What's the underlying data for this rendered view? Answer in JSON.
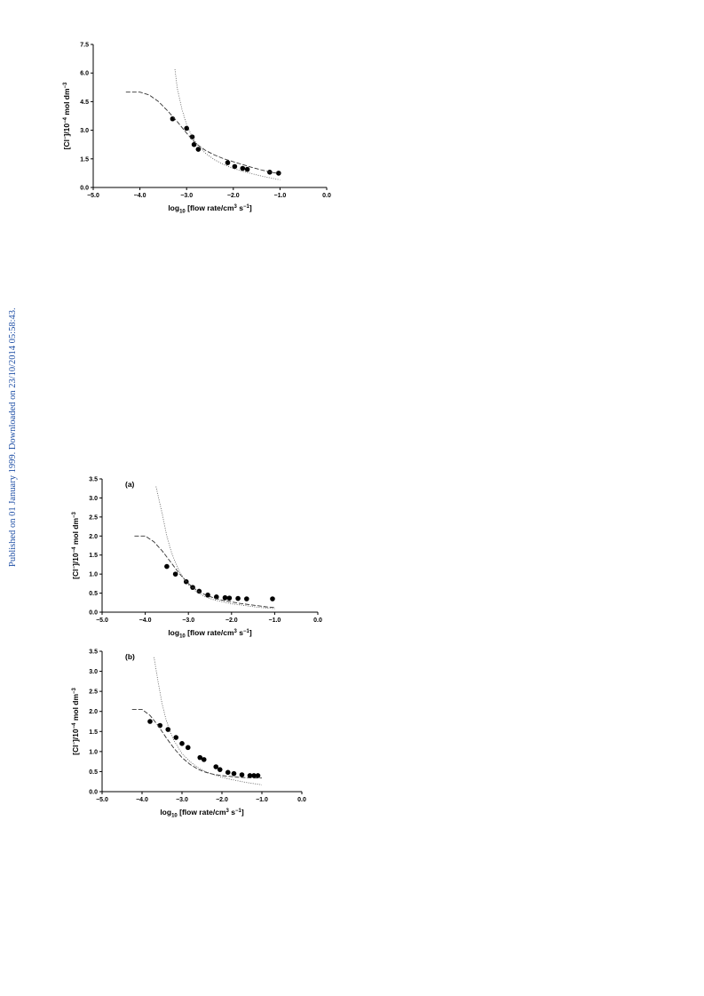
{
  "page": {
    "sidebar_text": "Published on 01 January 1999. Downloaded on 23/10/2014 05:58:43.",
    "sidebar_color": "#1f4fa5"
  },
  "chart_data": [
    {
      "type": "scatter",
      "title": "",
      "panel_label": "",
      "xlabel_main": "log",
      "xlabel_sub": "10",
      "xlabel_rest": " [flow rate/cm",
      "xlabel_sup": "3",
      "xlabel_end": " s",
      "xlabel_sup2": "−1",
      "xlabel_close": "]",
      "ylabel_main": "[Cl",
      "ylabel_sup1": "−",
      "ylabel_mid": "]/10",
      "ylabel_sup2": "−4",
      "ylabel_mid2": " mol dm",
      "ylabel_sup3": "−3",
      "xlim": [
        -5.0,
        0.0
      ],
      "ylim": [
        0.0,
        7.5
      ],
      "xticks": [
        -5.0,
        -4.0,
        -3.0,
        -2.0,
        -1.0,
        0.0
      ],
      "xtick_labels": [
        "−5.0",
        "−4.0",
        "−3.0",
        "−2.0",
        "−1.0",
        "0.0"
      ],
      "yticks": [
        0.0,
        1.5,
        3.0,
        4.5,
        6.0,
        7.5
      ],
      "ytick_labels": [
        "0.0",
        "1.5",
        "3.0",
        "4.5",
        "6.0",
        "7.5"
      ],
      "grid": false,
      "series": [
        {
          "style": "points",
          "x": [
            -3.3,
            -3.0,
            -2.88,
            -2.84,
            -2.75,
            -2.12,
            -1.97,
            -1.8,
            -1.7,
            -1.22,
            -1.03
          ],
          "y": [
            3.6,
            3.1,
            2.65,
            2.25,
            2.0,
            1.3,
            1.1,
            1.0,
            0.95,
            0.8,
            0.75
          ]
        },
        {
          "style": "dashed",
          "x": [
            -4.3,
            -4.0,
            -3.8,
            -3.6,
            -3.4,
            -3.2,
            -3.0,
            -2.8,
            -2.6,
            -2.4,
            -2.2,
            -2.0,
            -1.8,
            -1.6,
            -1.4,
            -1.2,
            -1.0
          ],
          "y": [
            5.0,
            5.0,
            4.85,
            4.5,
            4.0,
            3.45,
            2.85,
            2.3,
            1.95,
            1.7,
            1.5,
            1.35,
            1.2,
            1.05,
            0.92,
            0.8,
            0.72
          ]
        },
        {
          "style": "dotted",
          "x": [
            -3.25,
            -3.2,
            -3.1,
            -3.0,
            -2.9,
            -2.8,
            -2.6,
            -2.4,
            -2.2,
            -2.0,
            -1.8,
            -1.6,
            -1.4,
            -1.2,
            -1.0
          ],
          "y": [
            6.2,
            5.2,
            4.1,
            3.3,
            2.75,
            2.35,
            1.8,
            1.45,
            1.2,
            1.0,
            0.85,
            0.72,
            0.6,
            0.5,
            0.4
          ]
        }
      ]
    },
    {
      "type": "scatter",
      "title": "",
      "panel_label": "(a)",
      "xlabel_main": "log",
      "xlabel_sub": "10",
      "xlabel_rest": " [flow rate/cm",
      "xlabel_sup": "3",
      "xlabel_end": " s",
      "xlabel_sup2": "−1",
      "xlabel_close": "]",
      "ylabel_main": "[Cl",
      "ylabel_sup1": "−",
      "ylabel_mid": "]/10",
      "ylabel_sup2": "−4",
      "ylabel_mid2": " mol dm",
      "ylabel_sup3": "−3",
      "xlim": [
        -5.0,
        0.0
      ],
      "ylim": [
        0.0,
        3.5
      ],
      "xticks": [
        -5.0,
        -4.0,
        -3.0,
        -2.0,
        -1.0,
        0.0
      ],
      "xtick_labels": [
        "−5.0",
        "−4.0",
        "−3.0",
        "−2.0",
        "−1.0",
        "0.0"
      ],
      "yticks": [
        0.0,
        0.5,
        1.0,
        1.5,
        2.0,
        2.5,
        3.0,
        3.5
      ],
      "ytick_labels": [
        "0.0",
        "0.5",
        "1.0",
        "1.5",
        "2.0",
        "2.5",
        "3.0",
        "3.5"
      ],
      "grid": false,
      "series": [
        {
          "style": "points",
          "x": [
            -3.5,
            -3.3,
            -3.05,
            -2.9,
            -2.75,
            -2.55,
            -2.35,
            -2.15,
            -2.05,
            -1.85,
            -1.65,
            -1.05
          ],
          "y": [
            1.2,
            1.0,
            0.8,
            0.65,
            0.55,
            0.45,
            0.4,
            0.38,
            0.37,
            0.36,
            0.35,
            0.35
          ]
        },
        {
          "style": "dashed",
          "x": [
            -4.25,
            -4.0,
            -3.8,
            -3.6,
            -3.4,
            -3.2,
            -3.0,
            -2.8,
            -2.6,
            -2.4,
            -2.2,
            -2.0,
            -1.8,
            -1.6,
            -1.4,
            -1.2,
            -1.0
          ],
          "y": [
            2.0,
            2.0,
            1.85,
            1.6,
            1.3,
            1.0,
            0.75,
            0.57,
            0.45,
            0.37,
            0.31,
            0.27,
            0.23,
            0.2,
            0.17,
            0.14,
            0.12
          ]
        },
        {
          "style": "dotted",
          "x": [
            -3.75,
            -3.6,
            -3.5,
            -3.4,
            -3.3,
            -3.2,
            -3.0,
            -2.8,
            -2.6,
            -2.4,
            -2.2,
            -2.0,
            -1.8,
            -1.6,
            -1.4,
            -1.2,
            -1.0
          ],
          "y": [
            3.3,
            2.55,
            2.0,
            1.6,
            1.3,
            1.05,
            0.72,
            0.52,
            0.4,
            0.32,
            0.27,
            0.22,
            0.19,
            0.16,
            0.13,
            0.11,
            0.09
          ]
        }
      ]
    },
    {
      "type": "scatter",
      "title": "",
      "panel_label": "(b)",
      "xlabel_main": "log",
      "xlabel_sub": "10",
      "xlabel_rest": " [flow rate/cm",
      "xlabel_sup": "3",
      "xlabel_end": " s",
      "xlabel_sup2": "−1",
      "xlabel_close": "]",
      "ylabel_main": "[Cl",
      "ylabel_sup1": "−",
      "ylabel_mid": "]/10",
      "ylabel_sup2": "−4",
      "ylabel_mid2": " mol dm",
      "ylabel_sup3": "−3",
      "xlim": [
        -5.0,
        0.0
      ],
      "ylim": [
        0.0,
        3.5
      ],
      "xticks": [
        -5.0,
        -4.0,
        -3.0,
        -2.0,
        -1.0,
        0.0
      ],
      "xtick_labels": [
        "−5.0",
        "−4.0",
        "−3.0",
        "−2.0",
        "−1.0",
        "0.0"
      ],
      "yticks": [
        0.0,
        0.5,
        1.0,
        1.5,
        2.0,
        2.5,
        3.0,
        3.5
      ],
      "ytick_labels": [
        "0.0",
        "0.5",
        "1.0",
        "1.5",
        "2.0",
        "2.5",
        "3.0",
        "3.5"
      ],
      "grid": false,
      "series": [
        {
          "style": "points",
          "x": [
            -3.8,
            -3.55,
            -3.35,
            -3.15,
            -3.0,
            -2.85,
            -2.55,
            -2.45,
            -2.15,
            -2.05,
            -1.85,
            -1.7,
            -1.5,
            -1.3,
            -1.2,
            -1.1
          ],
          "y": [
            1.75,
            1.65,
            1.55,
            1.35,
            1.2,
            1.1,
            0.85,
            0.8,
            0.62,
            0.55,
            0.48,
            0.45,
            0.42,
            0.4,
            0.4,
            0.4
          ]
        },
        {
          "style": "dashed",
          "x": [
            -4.25,
            -4.0,
            -3.8,
            -3.6,
            -3.4,
            -3.2,
            -3.0,
            -2.8,
            -2.6,
            -2.4,
            -2.2,
            -2.0,
            -1.8,
            -1.6,
            -1.4,
            -1.2,
            -1.0
          ],
          "y": [
            2.05,
            2.05,
            1.9,
            1.65,
            1.35,
            1.08,
            0.85,
            0.68,
            0.56,
            0.48,
            0.43,
            0.4,
            0.38,
            0.36,
            0.35,
            0.34,
            0.34
          ]
        },
        {
          "style": "dotted",
          "x": [
            -3.7,
            -3.6,
            -3.5,
            -3.4,
            -3.3,
            -3.2,
            -3.0,
            -2.8,
            -2.6,
            -2.4,
            -2.2,
            -2.0,
            -1.8,
            -1.6,
            -1.4,
            -1.2,
            -1.0
          ],
          "y": [
            3.35,
            2.75,
            2.2,
            1.8,
            1.5,
            1.27,
            0.95,
            0.75,
            0.6,
            0.5,
            0.42,
            0.36,
            0.31,
            0.27,
            0.23,
            0.2,
            0.17
          ]
        }
      ]
    }
  ]
}
